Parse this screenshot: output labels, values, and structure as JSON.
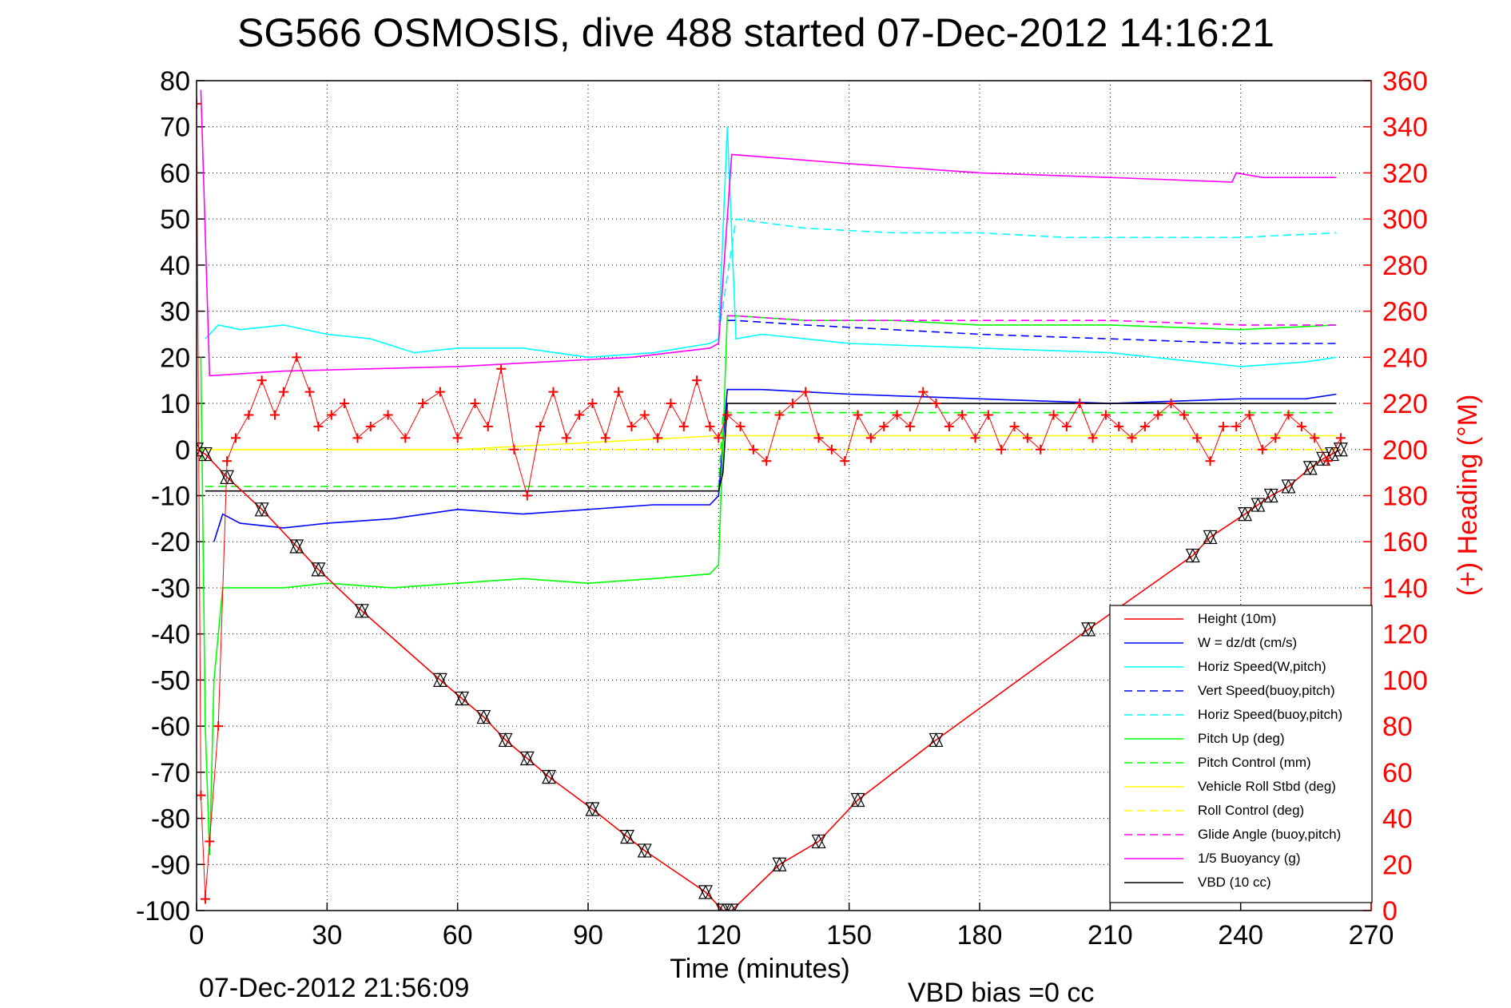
{
  "chart_data": {
    "type": "line",
    "title": "SG566 OSMOSIS, dive 488 started 07-Dec-2012 14:16:21",
    "xlabel": "Time (minutes)",
    "ylabel_right": "(+) Heading (°M)",
    "footer_left": "07-Dec-2012 21:56:09",
    "footer_right": "VBD bias =0 cc",
    "xlim": [
      0,
      270
    ],
    "ylim": [
      -100,
      80
    ],
    "y2lim": [
      0,
      360
    ],
    "x_ticks": [
      "0",
      "30",
      "60",
      "90",
      "120",
      "150",
      "180",
      "210",
      "240",
      "270"
    ],
    "y_ticks": [
      "80",
      "70",
      "60",
      "50",
      "40",
      "30",
      "20",
      "10",
      "0",
      "-10",
      "-20",
      "-30",
      "-40",
      "-50",
      "-60",
      "-70",
      "-80",
      "-90",
      "-100"
    ],
    "y2_ticks": [
      "360",
      "340",
      "320",
      "300",
      "280",
      "260",
      "240",
      "220",
      "200",
      "180",
      "160",
      "140",
      "120",
      "100",
      "80",
      "60",
      "40",
      "20",
      "0"
    ],
    "grid": true,
    "legend_position": "bottom-right",
    "series": [
      {
        "name": "Height (10m)",
        "color": "#ff0000",
        "style": "solid",
        "x": [
          0,
          2,
          7,
          15,
          23,
          28,
          38,
          56,
          61,
          66,
          71,
          76,
          81,
          91,
          99,
          103,
          117,
          121,
          123,
          134,
          143,
          152,
          170,
          205,
          229,
          233,
          241,
          244,
          247,
          251,
          256,
          259,
          261,
          263
        ],
        "y": [
          0,
          -1,
          -6,
          -13,
          -21,
          -26,
          -35,
          -50,
          -54,
          -58,
          -63,
          -67,
          -71,
          -78,
          -84,
          -87,
          -96,
          -100,
          -100,
          -90,
          -85,
          -76,
          -63,
          -39,
          -23,
          -19,
          -14,
          -12,
          -10,
          -8,
          -4,
          -2,
          -1,
          0
        ]
      },
      {
        "name": "W = dz/dt (cm/s)",
        "color": "#0000ff",
        "style": "solid",
        "x": [
          4,
          6,
          10,
          20,
          30,
          45,
          60,
          75,
          90,
          105,
          118,
          120,
          122,
          130,
          150,
          180,
          210,
          240,
          255,
          262
        ],
        "y": [
          -20,
          -14,
          -16,
          -17,
          -16,
          -15,
          -13,
          -14,
          -13,
          -12,
          -12,
          -10,
          13,
          13,
          12,
          11,
          10,
          11,
          11,
          12
        ]
      },
      {
        "name": "Horiz Speed(W,pitch)",
        "color": "#00ffff",
        "style": "solid",
        "x": [
          2,
          5,
          10,
          20,
          30,
          40,
          50,
          60,
          75,
          90,
          105,
          118,
          120,
          122,
          124,
          130,
          150,
          180,
          210,
          240,
          255,
          262
        ],
        "y": [
          24,
          27,
          26,
          27,
          25,
          24,
          21,
          22,
          22,
          20,
          21,
          23,
          24,
          70,
          24,
          25,
          23,
          22,
          21,
          18,
          19,
          20
        ]
      },
      {
        "name": "Vert Speed(buoy,pitch)",
        "color": "#0000ff",
        "style": "dashed",
        "x": [
          122,
          124,
          140,
          160,
          180,
          210,
          240,
          262
        ],
        "y": [
          28,
          28,
          27,
          26,
          25,
          24,
          23,
          23
        ]
      },
      {
        "name": "Horiz Speed(buoy,pitch)",
        "color": "#00ffff",
        "style": "dashed",
        "x": [
          120,
          124,
          140,
          160,
          180,
          200,
          220,
          240,
          262
        ],
        "y": [
          25,
          50,
          48,
          47,
          47,
          46,
          46,
          46,
          47
        ]
      },
      {
        "name": "Pitch Up (deg)",
        "color": "#00ff00",
        "style": "solid",
        "x": [
          1,
          2,
          3,
          4,
          6,
          10,
          20,
          30,
          45,
          60,
          75,
          90,
          105,
          118,
          120,
          122,
          124,
          140,
          160,
          180,
          210,
          240,
          262
        ],
        "y": [
          20,
          -60,
          -88,
          -50,
          -30,
          -30,
          -30,
          -29,
          -30,
          -29,
          -28,
          -29,
          -28,
          -27,
          -25,
          29,
          29,
          28,
          28,
          27,
          27,
          26,
          27
        ]
      },
      {
        "name": "Pitch Control (mm)",
        "color": "#00ff00",
        "style": "dashed",
        "x": [
          2,
          120,
          121,
          262
        ],
        "y": [
          -8,
          -8,
          8,
          8
        ]
      },
      {
        "name": "Vehicle Roll Stbd (deg)",
        "color": "#ffff00",
        "style": "solid",
        "x": [
          0,
          5,
          10,
          20,
          60,
          120,
          150,
          200,
          240,
          262
        ],
        "y": [
          0,
          0,
          0,
          0,
          0,
          3,
          3,
          3,
          3,
          3
        ]
      },
      {
        "name": "Roll Control (deg)",
        "color": "#ffff00",
        "style": "dashed",
        "x": [
          2,
          262
        ],
        "y": [
          0,
          0
        ]
      },
      {
        "name": "Glide Angle (buoy,pitch)",
        "color": "#ff00ff",
        "style": "dashed",
        "x": [
          122,
          124,
          140,
          180,
          210,
          240,
          262
        ],
        "y": [
          29,
          29,
          28,
          28,
          28,
          27,
          27
        ]
      },
      {
        "name": "1/5 Buoyancy (g)",
        "color": "#ff00ff",
        "style": "solid",
        "x": [
          1,
          3,
          20,
          60,
          100,
          118,
          120,
          123,
          150,
          180,
          210,
          238,
          239,
          245,
          262
        ],
        "y": [
          78,
          16,
          17,
          18,
          20,
          22,
          23,
          64,
          62,
          60,
          59,
          58,
          60,
          59,
          59
        ]
      },
      {
        "name": "VBD (10 cc)",
        "color": "#000000",
        "style": "solid",
        "x": [
          2,
          120,
          121,
          122,
          262
        ],
        "y": [
          -9,
          -9,
          -5,
          10,
          10
        ]
      }
    ],
    "heading_series": {
      "name": "(+) Heading",
      "color": "#ff0000",
      "marker": "+",
      "x": [
        0,
        1,
        2,
        3,
        5,
        7,
        9,
        12,
        15,
        18,
        20,
        23,
        26,
        28,
        31,
        34,
        37,
        40,
        44,
        48,
        52,
        56,
        60,
        64,
        67,
        70,
        73,
        76,
        79,
        82,
        85,
        88,
        91,
        94,
        97,
        100,
        103,
        106,
        109,
        112,
        115,
        118,
        120,
        122,
        125,
        128,
        131,
        134,
        137,
        140,
        143,
        146,
        149,
        152,
        155,
        158,
        161,
        164,
        167,
        170,
        173,
        176,
        179,
        182,
        185,
        188,
        191,
        194,
        197,
        200,
        203,
        206,
        209,
        212,
        215,
        218,
        221,
        224,
        227,
        230,
        233,
        236,
        239,
        242,
        245,
        248,
        251,
        254,
        257,
        260,
        263
      ],
      "y": [
        350,
        50,
        5,
        30,
        80,
        195,
        205,
        215,
        230,
        215,
        225,
        240,
        225,
        210,
        215,
        220,
        205,
        210,
        215,
        205,
        220,
        225,
        205,
        220,
        210,
        235,
        200,
        180,
        210,
        225,
        205,
        215,
        220,
        205,
        225,
        210,
        215,
        205,
        220,
        210,
        230,
        210,
        205,
        215,
        210,
        200,
        195,
        215,
        220,
        225,
        205,
        200,
        195,
        215,
        205,
        210,
        215,
        210,
        225,
        220,
        210,
        215,
        205,
        215,
        200,
        210,
        205,
        200,
        215,
        210,
        220,
        205,
        215,
        210,
        205,
        210,
        215,
        220,
        215,
        205,
        195,
        210,
        210,
        215,
        200,
        205,
        215,
        210,
        205,
        195,
        205
      ]
    }
  }
}
